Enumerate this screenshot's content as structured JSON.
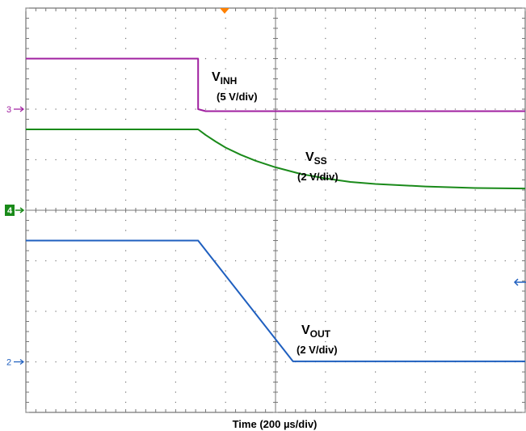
{
  "chart_data": {
    "type": "line",
    "title": "",
    "xlabel": "Time (200 µs/div)",
    "ylabel": "",
    "x_divisions": 10,
    "y_divisions": 8,
    "x_units": "div",
    "xlim": [
      0,
      10
    ],
    "ylim": [
      -4,
      4
    ],
    "grid": "dotted graticule with center cross ticks",
    "trigger_marker_color": "#ff8000",
    "channels": [
      {
        "id": "3",
        "marker_label": "3",
        "color": "#a020a0",
        "annotation": {
          "name": "V",
          "sub": "INH",
          "scale": "(5 V/div)"
        },
        "x": [
          0,
          3.45,
          3.45,
          3.6,
          10
        ],
        "y": [
          3.0,
          3.0,
          2.0,
          1.96,
          1.96
        ]
      },
      {
        "id": "4",
        "marker_label": "4",
        "color": "#1a8a1a",
        "annotation": {
          "name": "V",
          "sub": "SS",
          "scale": "(2 V/div)"
        },
        "x": [
          0,
          3.45,
          3.6,
          3.8,
          4.0,
          4.3,
          4.6,
          5.0,
          5.5,
          6.0,
          6.5,
          7.0,
          8.0,
          9.0,
          10
        ],
        "y": [
          1.6,
          1.6,
          1.49,
          1.36,
          1.24,
          1.1,
          0.98,
          0.85,
          0.72,
          0.63,
          0.56,
          0.52,
          0.47,
          0.44,
          0.43
        ]
      },
      {
        "id": "2",
        "marker_label": "2",
        "color": "#1f5fbf",
        "annotation": {
          "name": "V",
          "sub": "OUT",
          "scale": "(2 V/div)"
        },
        "x": [
          0,
          3.45,
          5.35,
          10
        ],
        "y": [
          -0.6,
          -0.6,
          -2.99,
          -2.99
        ]
      }
    ]
  }
}
